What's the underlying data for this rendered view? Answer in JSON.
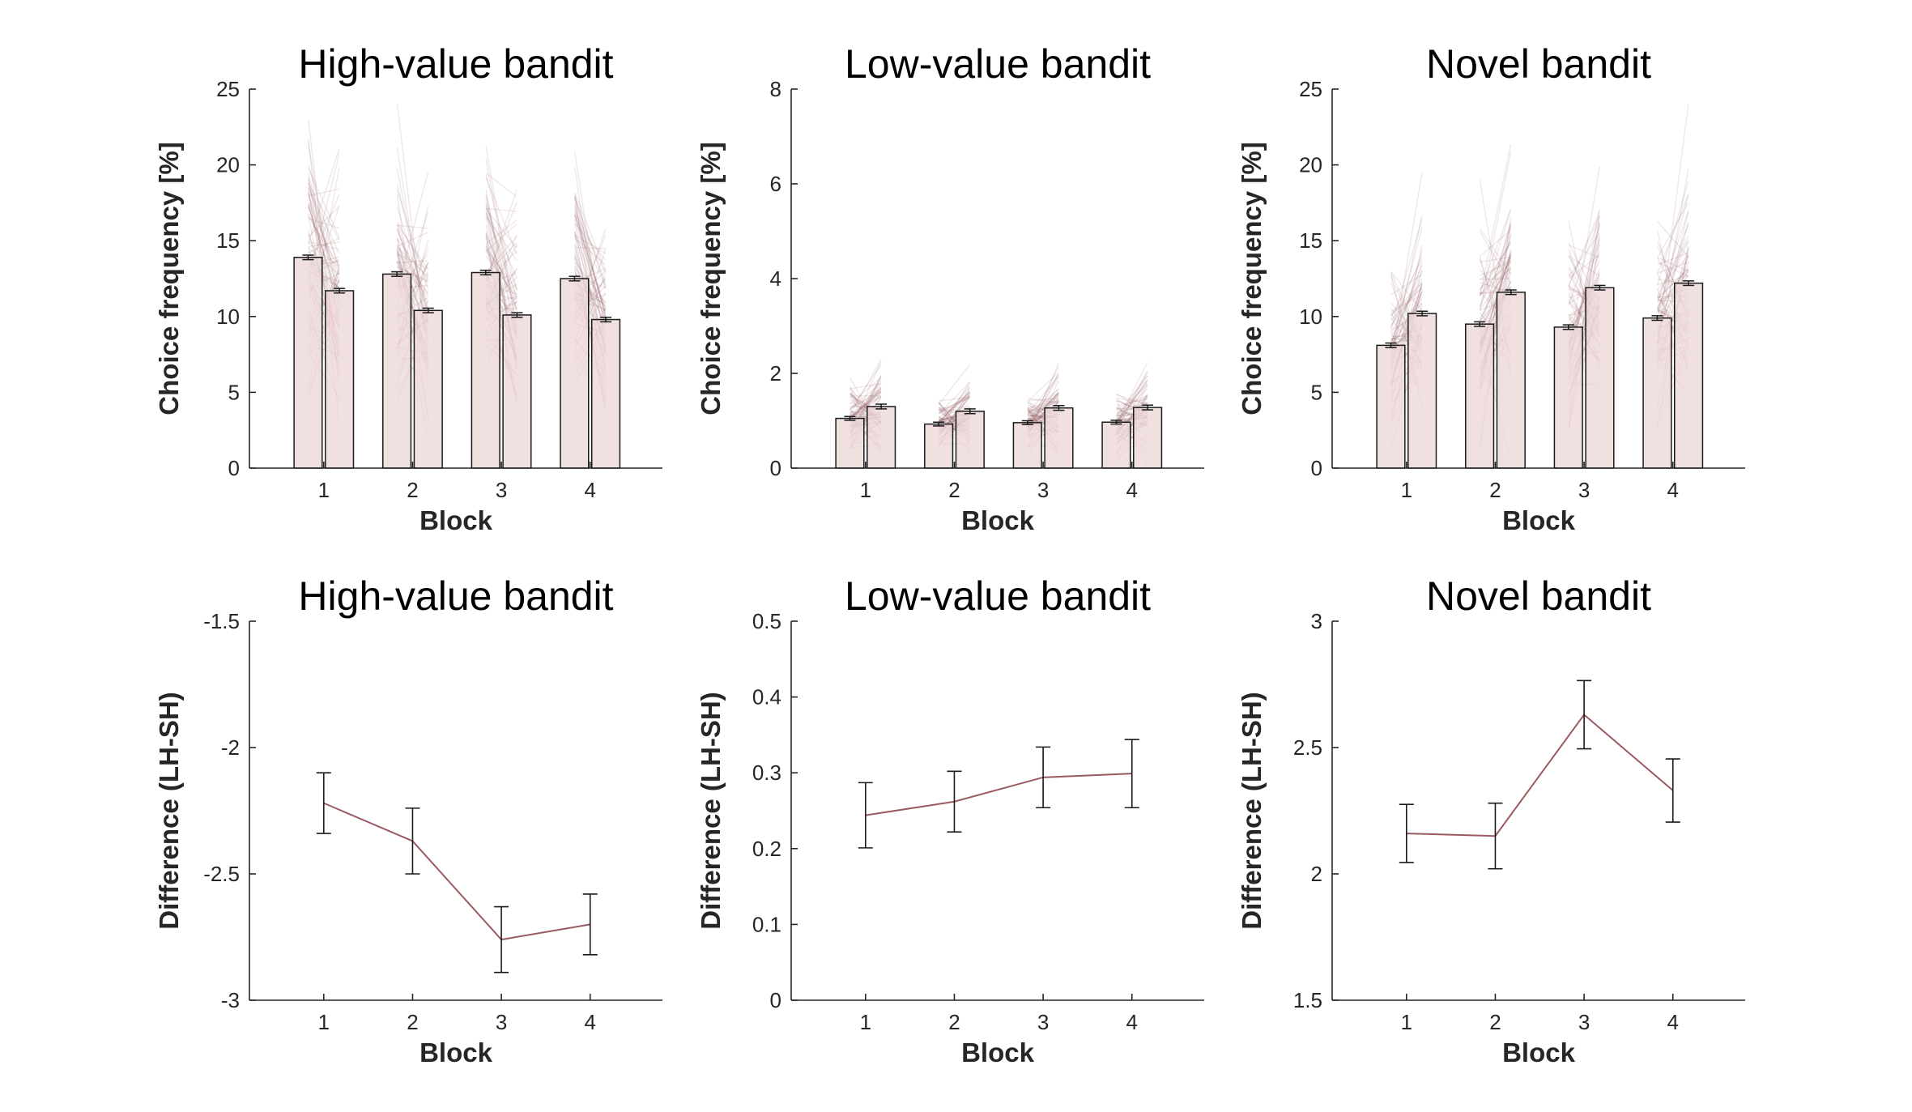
{
  "chart_data": [
    {
      "type": "bar",
      "title": "High-value bandit",
      "xlabel": "Block",
      "ylabel": "Choice frequency [%]",
      "categories": [
        "1",
        "2",
        "3",
        "4"
      ],
      "ylim": [
        0,
        25
      ],
      "yticks": [
        "0",
        "5",
        "10",
        "15",
        "20",
        "25"
      ],
      "series": [
        {
          "values": [
            13.9,
            12.8,
            12.9,
            12.5
          ],
          "errors": [
            0.15,
            0.15,
            0.15,
            0.15
          ]
        },
        {
          "values": [
            11.7,
            10.4,
            10.1,
            9.8
          ],
          "errors": [
            0.15,
            0.15,
            0.15,
            0.15
          ]
        }
      ],
      "individual_lines": true,
      "bar_color": "#ecd5d5",
      "line_color": "#7a3b3e"
    },
    {
      "type": "bar",
      "title": "Low-value bandit",
      "xlabel": "Block",
      "ylabel": "Choice frequency [%]",
      "categories": [
        "1",
        "2",
        "3",
        "4"
      ],
      "ylim": [
        0,
        8
      ],
      "yticks": [
        "0",
        "2",
        "4",
        "6",
        "8"
      ],
      "series": [
        {
          "values": [
            1.05,
            0.93,
            0.96,
            0.97
          ],
          "errors": [
            0.04,
            0.04,
            0.04,
            0.04
          ]
        },
        {
          "values": [
            1.3,
            1.2,
            1.27,
            1.28
          ],
          "errors": [
            0.05,
            0.05,
            0.05,
            0.05
          ]
        }
      ],
      "individual_lines": true,
      "bar_color": "#ecd5d5",
      "line_color": "#7a3b3e"
    },
    {
      "type": "bar",
      "title": "Novel bandit",
      "xlabel": "Block",
      "ylabel": "Choice frequency [%]",
      "categories": [
        "1",
        "2",
        "3",
        "4"
      ],
      "ylim": [
        0,
        25
      ],
      "yticks": [
        "0",
        "5",
        "10",
        "15",
        "20",
        "25"
      ],
      "series": [
        {
          "values": [
            8.1,
            9.5,
            9.3,
            9.9
          ],
          "errors": [
            0.15,
            0.15,
            0.15,
            0.15
          ]
        },
        {
          "values": [
            10.2,
            11.6,
            11.9,
            12.2
          ],
          "errors": [
            0.15,
            0.15,
            0.15,
            0.15
          ]
        }
      ],
      "individual_lines": true,
      "bar_color": "#ecd5d5",
      "line_color": "#7a3b3e"
    },
    {
      "type": "line",
      "title": "High-value bandit",
      "xlabel": "Block",
      "ylabel": "Difference (LH-SH)",
      "categories": [
        "1",
        "2",
        "3",
        "4"
      ],
      "ylim": [
        -3,
        -1.5
      ],
      "yticks": [
        "-3",
        "-2.5",
        "-2",
        "-1.5"
      ],
      "values": [
        -2.22,
        -2.37,
        -2.76,
        -2.7
      ],
      "errors": [
        0.12,
        0.13,
        0.13,
        0.12
      ],
      "line_color": "#9b5a60"
    },
    {
      "type": "line",
      "title": "Low-value bandit",
      "xlabel": "Block",
      "ylabel": "Difference (LH-SH)",
      "categories": [
        "1",
        "2",
        "3",
        "4"
      ],
      "ylim": [
        0,
        0.5
      ],
      "yticks": [
        "0",
        "0.1",
        "0.2",
        "0.3",
        "0.4",
        "0.5"
      ],
      "values": [
        0.244,
        0.262,
        0.294,
        0.299
      ],
      "errors": [
        0.043,
        0.04,
        0.04,
        0.045
      ],
      "line_color": "#9b5a60"
    },
    {
      "type": "line",
      "title": "Novel bandit",
      "xlabel": "Block",
      "ylabel": "Difference (LH-SH)",
      "categories": [
        "1",
        "2",
        "3",
        "4"
      ],
      "ylim": [
        1.5,
        3
      ],
      "yticks": [
        "1.5",
        "2",
        "2.5",
        "3"
      ],
      "values": [
        2.16,
        2.15,
        2.63,
        2.33
      ],
      "errors": [
        0.115,
        0.13,
        0.135,
        0.125
      ],
      "line_color": "#9b5a60"
    }
  ]
}
